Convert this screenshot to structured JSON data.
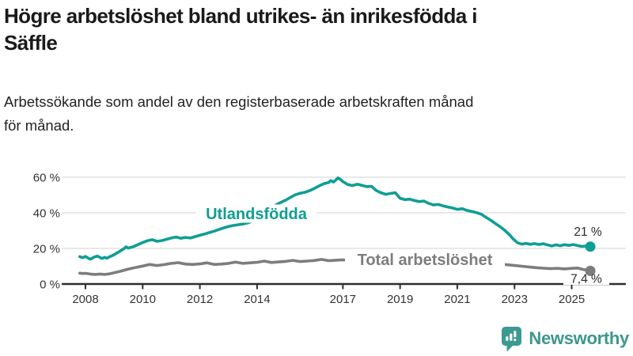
{
  "page": {
    "title": "Högre arbetslöshet bland utrikes- än inrikesfödda i\nSäffle",
    "subtitle": "Arbetssökande som andel av den registerbaserade arbetskraften månad\nför månad."
  },
  "footer": {
    "brand": "Newsworthy",
    "logo_icon": "bar-chart-speech-bubble-icon"
  },
  "colors": {
    "series_utlandsfodda": "#0f9e94",
    "series_total": "#7d7d7d",
    "grid": "#d9d9d9",
    "axis": "#2e2e2e",
    "tick_text": "#333333",
    "title_text": "#1a1a1a",
    "brand_teal": "#3c978e",
    "background": "#ffffff"
  },
  "chart_data": {
    "type": "line",
    "title": "Högre arbetslöshet bland utrikes- än inrikesfödda i Säffle",
    "subtitle": "Arbetssökande som andel av den registerbaserade arbetskraften månad för månad.",
    "xlabel": "",
    "ylabel": "",
    "unit": "%",
    "grid": "horizontal-only",
    "legend": "inline-labels",
    "x_axis": {
      "ticks": [
        2008,
        2010,
        2012,
        2014,
        2017,
        2019,
        2021,
        2023,
        2025
      ],
      "range": [
        2007.8,
        2025.9
      ]
    },
    "y_axis": {
      "ticks": [
        0,
        20,
        40,
        60
      ],
      "tick_labels": [
        "0 %",
        "20 %",
        "40 %",
        "60 %"
      ],
      "range": [
        0,
        63
      ]
    },
    "series": [
      {
        "name": "Utlandsfödda",
        "color": "#0f9e94",
        "end_label": "21 %",
        "end_value": 21,
        "points": [
          [
            2007.8,
            15.4
          ],
          [
            2007.9,
            14.8
          ],
          [
            2008.0,
            15.5
          ],
          [
            2008.08,
            14.7
          ],
          [
            2008.17,
            13.9
          ],
          [
            2008.25,
            14.6
          ],
          [
            2008.33,
            15.3
          ],
          [
            2008.42,
            15.7
          ],
          [
            2008.5,
            15.0
          ],
          [
            2008.58,
            14.3
          ],
          [
            2008.67,
            15.0
          ],
          [
            2008.75,
            14.5
          ],
          [
            2008.83,
            15.2
          ],
          [
            2008.92,
            15.8
          ],
          [
            2009.0,
            16.5
          ],
          [
            2009.17,
            18.1
          ],
          [
            2009.33,
            19.7
          ],
          [
            2009.42,
            20.9
          ],
          [
            2009.5,
            20.2
          ],
          [
            2009.67,
            21.0
          ],
          [
            2009.83,
            22.1
          ],
          [
            2010.0,
            23.3
          ],
          [
            2010.17,
            24.3
          ],
          [
            2010.33,
            24.9
          ],
          [
            2010.5,
            24.0
          ],
          [
            2010.67,
            24.4
          ],
          [
            2010.83,
            25.1
          ],
          [
            2011.0,
            25.8
          ],
          [
            2011.17,
            26.4
          ],
          [
            2011.33,
            25.7
          ],
          [
            2011.5,
            26.2
          ],
          [
            2011.67,
            25.8
          ],
          [
            2011.83,
            26.6
          ],
          [
            2012.0,
            27.4
          ],
          [
            2012.17,
            28.1
          ],
          [
            2012.33,
            28.9
          ],
          [
            2012.5,
            29.7
          ],
          [
            2012.67,
            30.6
          ],
          [
            2012.83,
            31.5
          ],
          [
            2013.0,
            32.3
          ],
          [
            2013.17,
            32.9
          ],
          [
            2013.33,
            33.3
          ],
          [
            2013.5,
            33.7
          ],
          [
            2013.67,
            34.3
          ],
          [
            2013.83,
            35.3
          ],
          [
            2014.0,
            36.6
          ],
          [
            2014.17,
            38.4
          ],
          [
            2014.33,
            40.5
          ],
          [
            2014.5,
            42.7
          ],
          [
            2014.67,
            44.5
          ],
          [
            2014.83,
            45.8
          ],
          [
            2015.0,
            47.1
          ],
          [
            2015.17,
            48.7
          ],
          [
            2015.33,
            50.1
          ],
          [
            2015.5,
            51.0
          ],
          [
            2015.67,
            51.5
          ],
          [
            2015.83,
            52.4
          ],
          [
            2016.0,
            53.7
          ],
          [
            2016.17,
            55.1
          ],
          [
            2016.33,
            56.3
          ],
          [
            2016.5,
            57.0
          ],
          [
            2016.58,
            58.1
          ],
          [
            2016.67,
            57.3
          ],
          [
            2016.75,
            58.4
          ],
          [
            2016.83,
            59.6
          ],
          [
            2016.92,
            58.7
          ],
          [
            2017.0,
            57.5
          ],
          [
            2017.17,
            55.9
          ],
          [
            2017.33,
            55.3
          ],
          [
            2017.5,
            56.1
          ],
          [
            2017.67,
            55.4
          ],
          [
            2017.83,
            54.7
          ],
          [
            2018.0,
            54.9
          ],
          [
            2018.17,
            52.5
          ],
          [
            2018.33,
            51.3
          ],
          [
            2018.5,
            50.4
          ],
          [
            2018.67,
            50.9
          ],
          [
            2018.83,
            51.3
          ],
          [
            2019.0,
            48.2
          ],
          [
            2019.17,
            47.4
          ],
          [
            2019.33,
            47.7
          ],
          [
            2019.5,
            46.9
          ],
          [
            2019.67,
            46.3
          ],
          [
            2019.83,
            46.6
          ],
          [
            2020.0,
            45.3
          ],
          [
            2020.17,
            44.4
          ],
          [
            2020.33,
            44.7
          ],
          [
            2020.5,
            43.9
          ],
          [
            2020.67,
            43.3
          ],
          [
            2020.83,
            42.7
          ],
          [
            2021.0,
            41.9
          ],
          [
            2021.17,
            42.3
          ],
          [
            2021.33,
            41.4
          ],
          [
            2021.5,
            40.8
          ],
          [
            2021.67,
            40.1
          ],
          [
            2021.83,
            39.3
          ],
          [
            2022.0,
            37.5
          ],
          [
            2022.17,
            35.8
          ],
          [
            2022.33,
            34.0
          ],
          [
            2022.5,
            32.2
          ],
          [
            2022.67,
            30.0
          ],
          [
            2022.83,
            27.6
          ],
          [
            2022.95,
            25.4
          ],
          [
            2023.1,
            23.2
          ],
          [
            2023.25,
            22.4
          ],
          [
            2023.4,
            22.8
          ],
          [
            2023.55,
            22.3
          ],
          [
            2023.7,
            22.7
          ],
          [
            2023.85,
            22.2
          ],
          [
            2024.0,
            22.6
          ],
          [
            2024.15,
            22.0
          ],
          [
            2024.3,
            21.4
          ],
          [
            2024.45,
            22.0
          ],
          [
            2024.6,
            21.5
          ],
          [
            2024.75,
            22.1
          ],
          [
            2024.9,
            21.7
          ],
          [
            2025.05,
            22.2
          ],
          [
            2025.2,
            21.6
          ],
          [
            2025.35,
            21.1
          ],
          [
            2025.5,
            21.4
          ],
          [
            2025.65,
            21.0
          ]
        ]
      },
      {
        "name": "Total arbetslöshet",
        "color": "#7d7d7d",
        "end_label": "7,4 %",
        "end_value": 7.4,
        "points": [
          [
            2007.8,
            6.1
          ],
          [
            2007.9,
            5.9
          ],
          [
            2008.0,
            6.0
          ],
          [
            2008.17,
            5.6
          ],
          [
            2008.33,
            5.4
          ],
          [
            2008.5,
            5.6
          ],
          [
            2008.67,
            5.4
          ],
          [
            2008.83,
            5.7
          ],
          [
            2009.0,
            6.3
          ],
          [
            2009.25,
            7.3
          ],
          [
            2009.5,
            8.4
          ],
          [
            2009.75,
            9.3
          ],
          [
            2010.0,
            10.1
          ],
          [
            2010.25,
            11.0
          ],
          [
            2010.5,
            10.4
          ],
          [
            2010.75,
            10.9
          ],
          [
            2011.0,
            11.6
          ],
          [
            2011.25,
            12.0
          ],
          [
            2011.5,
            11.2
          ],
          [
            2011.75,
            11.0
          ],
          [
            2012.0,
            11.3
          ],
          [
            2012.25,
            11.9
          ],
          [
            2012.5,
            11.0
          ],
          [
            2012.75,
            11.2
          ],
          [
            2013.0,
            11.6
          ],
          [
            2013.25,
            12.3
          ],
          [
            2013.5,
            11.6
          ],
          [
            2013.75,
            11.9
          ],
          [
            2014.0,
            12.2
          ],
          [
            2014.25,
            12.9
          ],
          [
            2014.5,
            12.1
          ],
          [
            2014.75,
            12.4
          ],
          [
            2015.0,
            12.7
          ],
          [
            2015.25,
            13.3
          ],
          [
            2015.5,
            12.6
          ],
          [
            2015.75,
            12.9
          ],
          [
            2016.0,
            13.2
          ],
          [
            2016.25,
            13.8
          ],
          [
            2016.5,
            13.1
          ],
          [
            2016.75,
            13.4
          ],
          [
            2017.0,
            13.6
          ],
          [
            2017.25,
            13.2
          ],
          [
            2017.5,
            12.9
          ],
          [
            2017.75,
            12.6
          ],
          [
            2018.0,
            12.8
          ],
          [
            2018.33,
            12.3
          ],
          [
            2018.67,
            12.0
          ],
          [
            2019.0,
            12.2
          ],
          [
            2019.33,
            11.8
          ],
          [
            2019.67,
            11.5
          ],
          [
            2020.0,
            11.8
          ],
          [
            2020.33,
            11.4
          ],
          [
            2020.67,
            11.1
          ],
          [
            2021.0,
            11.3
          ],
          [
            2021.33,
            10.9
          ],
          [
            2021.67,
            10.7
          ],
          [
            2022.0,
            10.9
          ],
          [
            2022.25,
            10.7
          ],
          [
            2022.5,
            11.1
          ],
          [
            2022.75,
            10.8
          ],
          [
            2023.0,
            10.4
          ],
          [
            2023.25,
            10.0
          ],
          [
            2023.5,
            9.6
          ],
          [
            2023.75,
            9.2
          ],
          [
            2024.0,
            8.9
          ],
          [
            2024.25,
            8.6
          ],
          [
            2024.5,
            8.8
          ],
          [
            2024.75,
            8.5
          ],
          [
            2025.0,
            8.8
          ],
          [
            2025.2,
            9.0
          ],
          [
            2025.4,
            8.2
          ],
          [
            2025.65,
            7.4
          ]
        ]
      }
    ]
  }
}
